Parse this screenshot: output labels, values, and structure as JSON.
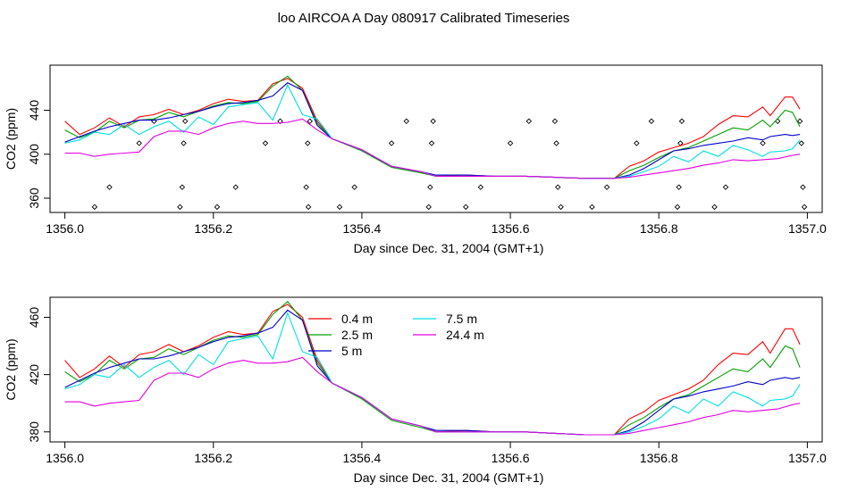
{
  "figure": {
    "title": "loo AIRCOA A  Day 080917  Calibrated Timeseries"
  },
  "chart_data": [
    {
      "type": "scatter+line",
      "xlabel": "Day since Dec. 31, 2004 (GMT+1)",
      "ylabel": "CO2 (ppm)",
      "xlim": [
        1355.98,
        1357.02
      ],
      "ylim": [
        347,
        481
      ],
      "xticks": [
        "1356.0",
        "1356.2",
        "1356.4",
        "1356.6",
        "1356.8",
        "1357.0"
      ],
      "xtick_values": [
        1356.0,
        1356.2,
        1356.4,
        1356.6,
        1356.8,
        1357.0
      ],
      "yticks": [
        "360",
        "400",
        "440"
      ],
      "ytick_values": [
        360,
        400,
        440
      ],
      "points": [
        [
          1356.04,
          352
        ],
        [
          1356.06,
          370
        ],
        [
          1356.1,
          410
        ],
        [
          1356.12,
          430
        ],
        [
          1356.155,
          352
        ],
        [
          1356.158,
          370
        ],
        [
          1356.16,
          410
        ],
        [
          1356.162,
          430
        ],
        [
          1356.205,
          352
        ],
        [
          1356.23,
          370
        ],
        [
          1356.27,
          410
        ],
        [
          1356.29,
          430
        ],
        [
          1356.325,
          370
        ],
        [
          1356.327,
          410
        ],
        [
          1356.328,
          352
        ],
        [
          1356.33,
          430
        ],
        [
          1356.37,
          352
        ],
        [
          1356.39,
          370
        ],
        [
          1356.44,
          410
        ],
        [
          1356.46,
          430
        ],
        [
          1356.49,
          352
        ],
        [
          1356.492,
          370
        ],
        [
          1356.494,
          410
        ],
        [
          1356.496,
          430
        ],
        [
          1356.54,
          352
        ],
        [
          1356.56,
          370
        ],
        [
          1356.6,
          410
        ],
        [
          1356.625,
          430
        ],
        [
          1356.66,
          430
        ],
        [
          1356.662,
          410
        ],
        [
          1356.664,
          370
        ],
        [
          1356.668,
          352
        ],
        [
          1356.71,
          352
        ],
        [
          1356.73,
          370
        ],
        [
          1356.77,
          410
        ],
        [
          1356.79,
          430
        ],
        [
          1356.825,
          352
        ],
        [
          1356.827,
          370
        ],
        [
          1356.829,
          410
        ],
        [
          1356.831,
          430
        ],
        [
          1356.875,
          352
        ],
        [
          1356.89,
          370
        ],
        [
          1356.94,
          410
        ],
        [
          1356.96,
          430
        ],
        [
          1356.99,
          430
        ],
        [
          1356.992,
          410
        ],
        [
          1356.994,
          370
        ],
        [
          1356.996,
          352
        ]
      ]
    },
    {
      "type": "line",
      "xlabel": "Day since Dec. 31, 2004 (GMT+1)",
      "ylabel": "CO2 (ppm)",
      "xlim": [
        1355.98,
        1357.02
      ],
      "ylim": [
        373,
        474
      ],
      "xticks": [
        "1356.0",
        "1356.2",
        "1356.4",
        "1356.6",
        "1356.8",
        "1357.0"
      ],
      "xtick_values": [
        1356.0,
        1356.2,
        1356.4,
        1356.6,
        1356.8,
        1357.0
      ],
      "yticks": [
        "380",
        "420",
        "460"
      ],
      "ytick_values": [
        380,
        420,
        460
      ],
      "legend_position": "top-center",
      "series": [
        {
          "name": "0.4 m",
          "color": "#ff0000",
          "points": [
            [
              1356.0,
              430
            ],
            [
              1356.02,
              418
            ],
            [
              1356.04,
              424
            ],
            [
              1356.06,
              433
            ],
            [
              1356.08,
              425
            ],
            [
              1356.1,
              434
            ],
            [
              1356.12,
              436
            ],
            [
              1356.14,
              441
            ],
            [
              1356.16,
              436
            ],
            [
              1356.18,
              440
            ],
            [
              1356.2,
              446
            ],
            [
              1356.22,
              450
            ],
            [
              1356.24,
              448
            ],
            [
              1356.26,
              449
            ],
            [
              1356.28,
              464
            ],
            [
              1356.3,
              469
            ],
            [
              1356.32,
              460
            ],
            [
              1356.34,
              430
            ],
            [
              1356.36,
              414
            ],
            [
              1356.4,
              404
            ],
            [
              1356.44,
              389
            ],
            [
              1356.48,
              384
            ],
            [
              1356.5,
              380
            ],
            [
              1356.54,
              381
            ],
            [
              1356.58,
              380
            ],
            [
              1356.62,
              380
            ],
            [
              1356.66,
              379
            ],
            [
              1356.7,
              378
            ],
            [
              1356.74,
              378
            ],
            [
              1356.76,
              389
            ],
            [
              1356.78,
              394
            ],
            [
              1356.8,
              402
            ],
            [
              1356.82,
              406
            ],
            [
              1356.84,
              410
            ],
            [
              1356.86,
              416
            ],
            [
              1356.88,
              427
            ],
            [
              1356.9,
              435
            ],
            [
              1356.92,
              434
            ],
            [
              1356.94,
              443
            ],
            [
              1356.95,
              435
            ],
            [
              1356.97,
              452
            ],
            [
              1356.98,
              452
            ],
            [
              1356.99,
              441
            ]
          ]
        },
        {
          "name": "2.5 m",
          "color": "#00a000",
          "points": [
            [
              1356.0,
              422
            ],
            [
              1356.02,
              415
            ],
            [
              1356.04,
              420
            ],
            [
              1356.06,
              430
            ],
            [
              1356.08,
              424
            ],
            [
              1356.1,
              431
            ],
            [
              1356.12,
              432
            ],
            [
              1356.14,
              438
            ],
            [
              1356.16,
              434
            ],
            [
              1356.18,
              439
            ],
            [
              1356.2,
              444
            ],
            [
              1356.22,
              447
            ],
            [
              1356.24,
              446
            ],
            [
              1356.26,
              448
            ],
            [
              1356.28,
              462
            ],
            [
              1356.3,
              471
            ],
            [
              1356.32,
              458
            ],
            [
              1356.34,
              428
            ],
            [
              1356.36,
              414
            ],
            [
              1356.4,
              403
            ],
            [
              1356.44,
              388
            ],
            [
              1356.48,
              383
            ],
            [
              1356.5,
              380
            ],
            [
              1356.54,
              380
            ],
            [
              1356.58,
              380
            ],
            [
              1356.62,
              380
            ],
            [
              1356.66,
              379
            ],
            [
              1356.7,
              378
            ],
            [
              1356.74,
              378
            ],
            [
              1356.76,
              385
            ],
            [
              1356.78,
              390
            ],
            [
              1356.8,
              397
            ],
            [
              1356.82,
              403
            ],
            [
              1356.84,
              406
            ],
            [
              1356.86,
              412
            ],
            [
              1356.88,
              418
            ],
            [
              1356.9,
              424
            ],
            [
              1356.92,
              422
            ],
            [
              1356.94,
              431
            ],
            [
              1356.95,
              425
            ],
            [
              1356.97,
              440
            ],
            [
              1356.98,
              438
            ],
            [
              1356.99,
              425
            ]
          ]
        },
        {
          "name": "5 m",
          "color": "#0000c8",
          "points": [
            [
              1356.0,
              411
            ],
            [
              1356.02,
              416
            ],
            [
              1356.04,
              421
            ],
            [
              1356.06,
              425
            ],
            [
              1356.08,
              428
            ],
            [
              1356.1,
              431
            ],
            [
              1356.12,
              431
            ],
            [
              1356.14,
              433
            ],
            [
              1356.16,
              436
            ],
            [
              1356.18,
              439
            ],
            [
              1356.2,
              443
            ],
            [
              1356.22,
              446
            ],
            [
              1356.24,
              447
            ],
            [
              1356.26,
              449
            ],
            [
              1356.28,
              453
            ],
            [
              1356.3,
              465
            ],
            [
              1356.32,
              458
            ],
            [
              1356.34,
              426
            ],
            [
              1356.36,
              414
            ],
            [
              1356.4,
              404
            ],
            [
              1356.44,
              389
            ],
            [
              1356.48,
              384
            ],
            [
              1356.5,
              381
            ],
            [
              1356.54,
              381
            ],
            [
              1356.58,
              380
            ],
            [
              1356.62,
              380
            ],
            [
              1356.66,
              379
            ],
            [
              1356.7,
              378
            ],
            [
              1356.74,
              378
            ],
            [
              1356.76,
              381
            ],
            [
              1356.78,
              387
            ],
            [
              1356.8,
              395
            ],
            [
              1356.82,
              403
            ],
            [
              1356.84,
              405
            ],
            [
              1356.86,
              408
            ],
            [
              1356.88,
              410
            ],
            [
              1356.9,
              412
            ],
            [
              1356.92,
              415
            ],
            [
              1356.94,
              413
            ],
            [
              1356.95,
              416
            ],
            [
              1356.97,
              418
            ],
            [
              1356.98,
              417
            ],
            [
              1356.99,
              418
            ]
          ]
        },
        {
          "name": "7.5 m",
          "color": "#00e0e0",
          "points": [
            [
              1356.0,
              410
            ],
            [
              1356.02,
              413
            ],
            [
              1356.04,
              420
            ],
            [
              1356.06,
              418
            ],
            [
              1356.08,
              427
            ],
            [
              1356.1,
              418
            ],
            [
              1356.12,
              425
            ],
            [
              1356.14,
              430
            ],
            [
              1356.16,
              420
            ],
            [
              1356.18,
              434
            ],
            [
              1356.2,
              427
            ],
            [
              1356.22,
              443
            ],
            [
              1356.24,
              445
            ],
            [
              1356.26,
              447
            ],
            [
              1356.28,
              431
            ],
            [
              1356.3,
              463
            ],
            [
              1356.32,
              436
            ],
            [
              1356.34,
              432
            ],
            [
              1356.36,
              414
            ],
            [
              1356.4,
              404
            ],
            [
              1356.44,
              389
            ],
            [
              1356.48,
              384
            ],
            [
              1356.5,
              380
            ],
            [
              1356.54,
              380
            ],
            [
              1356.58,
              380
            ],
            [
              1356.62,
              380
            ],
            [
              1356.66,
              379
            ],
            [
              1356.7,
              378
            ],
            [
              1356.74,
              378
            ],
            [
              1356.76,
              380
            ],
            [
              1356.78,
              384
            ],
            [
              1356.8,
              389
            ],
            [
              1356.82,
              398
            ],
            [
              1356.84,
              393
            ],
            [
              1356.86,
              403
            ],
            [
              1356.88,
              398
            ],
            [
              1356.9,
              408
            ],
            [
              1356.92,
              404
            ],
            [
              1356.94,
              398
            ],
            [
              1356.95,
              402
            ],
            [
              1356.97,
              403
            ],
            [
              1356.98,
              405
            ],
            [
              1356.99,
              413
            ]
          ]
        },
        {
          "name": "24.4 m",
          "color": "#e000e0",
          "points": [
            [
              1356.0,
              401
            ],
            [
              1356.02,
              401
            ],
            [
              1356.04,
              398
            ],
            [
              1356.06,
              400
            ],
            [
              1356.08,
              401
            ],
            [
              1356.1,
              402
            ],
            [
              1356.12,
              416
            ],
            [
              1356.14,
              421
            ],
            [
              1356.16,
              421
            ],
            [
              1356.18,
              418
            ],
            [
              1356.2,
              424
            ],
            [
              1356.22,
              428
            ],
            [
              1356.24,
              430
            ],
            [
              1356.26,
              428
            ],
            [
              1356.28,
              428
            ],
            [
              1356.3,
              429
            ],
            [
              1356.32,
              432
            ],
            [
              1356.34,
              422
            ],
            [
              1356.36,
              414
            ],
            [
              1356.4,
              404
            ],
            [
              1356.44,
              389
            ],
            [
              1356.48,
              384
            ],
            [
              1356.5,
              380
            ],
            [
              1356.54,
              380
            ],
            [
              1356.58,
              380
            ],
            [
              1356.62,
              380
            ],
            [
              1356.66,
              379
            ],
            [
              1356.7,
              378
            ],
            [
              1356.74,
              378
            ],
            [
              1356.76,
              379
            ],
            [
              1356.78,
              381
            ],
            [
              1356.8,
              383
            ],
            [
              1356.82,
              385
            ],
            [
              1356.84,
              387
            ],
            [
              1356.86,
              390
            ],
            [
              1356.88,
              392
            ],
            [
              1356.9,
              395
            ],
            [
              1356.92,
              394
            ],
            [
              1356.94,
              395
            ],
            [
              1356.96,
              396
            ],
            [
              1356.98,
              399
            ],
            [
              1356.99,
              400
            ]
          ]
        }
      ]
    }
  ]
}
